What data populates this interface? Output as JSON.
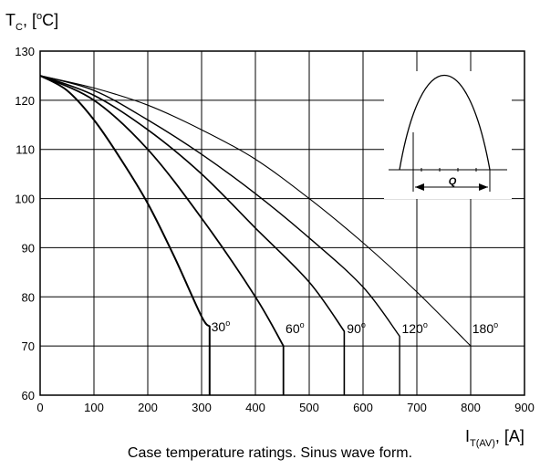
{
  "chart_data": {
    "type": "line",
    "y_axis_label": {
      "main": "T",
      "sub": "C",
      "unit": ", [",
      "degree": "o",
      "unit_end": "C]"
    },
    "x_axis_label": {
      "main": "I",
      "sub": "T(AV)",
      "unit": ", [A]"
    },
    "xlim": [
      0,
      900
    ],
    "ylim": [
      60,
      130
    ],
    "x_ticks": [
      "0",
      "100",
      "200",
      "300",
      "400",
      "500",
      "600",
      "700",
      "800",
      "900"
    ],
    "y_ticks": [
      "60",
      "70",
      "80",
      "90",
      "100",
      "110",
      "120",
      "130"
    ],
    "grid": true,
    "series": [
      {
        "name": "30",
        "x": [
          0,
          50,
          100,
          150,
          200,
          250,
          300,
          315,
          315
        ],
        "y": [
          125,
          122,
          116,
          108,
          99,
          88,
          76,
          74,
          60
        ]
      },
      {
        "name": "60",
        "x": [
          0,
          100,
          200,
          300,
          400,
          452,
          452
        ],
        "y": [
          125,
          120,
          110,
          96,
          80,
          70,
          60
        ]
      },
      {
        "name": "90",
        "x": [
          0,
          100,
          200,
          300,
          400,
          500,
          565,
          565
        ],
        "y": [
          125,
          121,
          114,
          105,
          94,
          83,
          73,
          60
        ]
      },
      {
        "name": "120",
        "x": [
          0,
          100,
          200,
          300,
          400,
          500,
          600,
          668,
          668
        ],
        "y": [
          125,
          122,
          116,
          109,
          101,
          92,
          82,
          72,
          60
        ]
      },
      {
        "name": "180",
        "x": [
          0,
          100,
          200,
          300,
          400,
          500,
          600,
          700,
          800,
          800
        ],
        "y": [
          125,
          122.5,
          119,
          114,
          108,
          100,
          91,
          81,
          70,
          60
        ]
      }
    ],
    "curve_labels": [
      {
        "text": "30",
        "sup": "o",
        "x": 318,
        "y": 73
      },
      {
        "text": "60",
        "sup": "o",
        "x": 456,
        "y": 72.6
      },
      {
        "text": "90",
        "sup": "o",
        "x": 570,
        "y": 72.6
      },
      {
        "text": "120",
        "sup": "o",
        "x": 672,
        "y": 72.6
      },
      {
        "text": "180",
        "sup": "o",
        "x": 803,
        "y": 72.6
      }
    ],
    "inset": {
      "label": "Q"
    }
  },
  "caption": "Case temperature ratings. Sinus wave form."
}
